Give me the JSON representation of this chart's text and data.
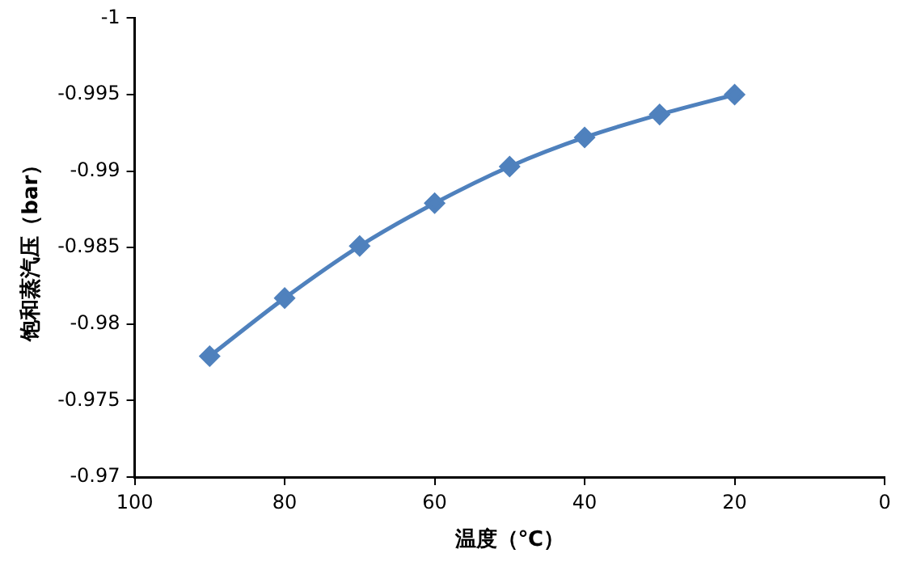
{
  "chart_data": {
    "type": "line",
    "xlabel": "温度（℃）",
    "ylabel": "饱和蒸汽压（bar）",
    "x": [
      90,
      80,
      70,
      60,
      50,
      40,
      30,
      20
    ],
    "series": [
      {
        "color": "#4f81bd",
        "values": [
          -0.9779,
          -0.9817,
          -0.9851,
          -0.9879,
          -0.9903,
          -0.9922,
          -0.9937,
          -0.995
        ]
      }
    ],
    "xlim": [
      100,
      0
    ],
    "xticks": [
      100,
      80,
      60,
      40,
      20,
      0
    ],
    "ylim": [
      -0.97,
      -1
    ],
    "yticks": [
      -1,
      -0.995,
      -0.99,
      -0.985,
      -0.98,
      -0.975,
      -0.97
    ],
    "grid": false,
    "legend": false,
    "marker": "diamond",
    "line_style": "solid"
  }
}
